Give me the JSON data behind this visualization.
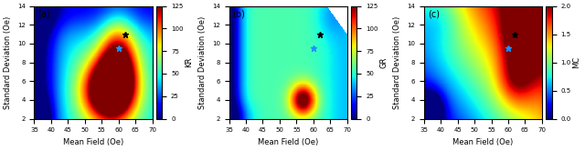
{
  "xlim": [
    35,
    70
  ],
  "ylim": [
    2,
    14
  ],
  "xticks": [
    35,
    40,
    45,
    50,
    55,
    60,
    65,
    70
  ],
  "yticks": [
    2,
    4,
    6,
    8,
    10,
    12,
    14
  ],
  "xlabel": "Mean Field (Oe)",
  "ylabel": "Standard Deviation (Oe)",
  "panels": [
    "(a)",
    "(b)",
    "(c)"
  ],
  "cbarlabels": [
    "KR",
    "GR",
    "MC"
  ],
  "cbar_ticks_kr": [
    0,
    25,
    50,
    75,
    100,
    125
  ],
  "cbar_ticks_gr": [
    0,
    25,
    50,
    75,
    100,
    125
  ],
  "cbar_ticks_mc": [
    0.0,
    0.5,
    1.0,
    1.5,
    2.0
  ],
  "black_star": [
    62,
    11
  ],
  "blue_star": [
    60,
    9.5
  ],
  "figsize": [
    6.4,
    1.65
  ],
  "dpi": 100
}
